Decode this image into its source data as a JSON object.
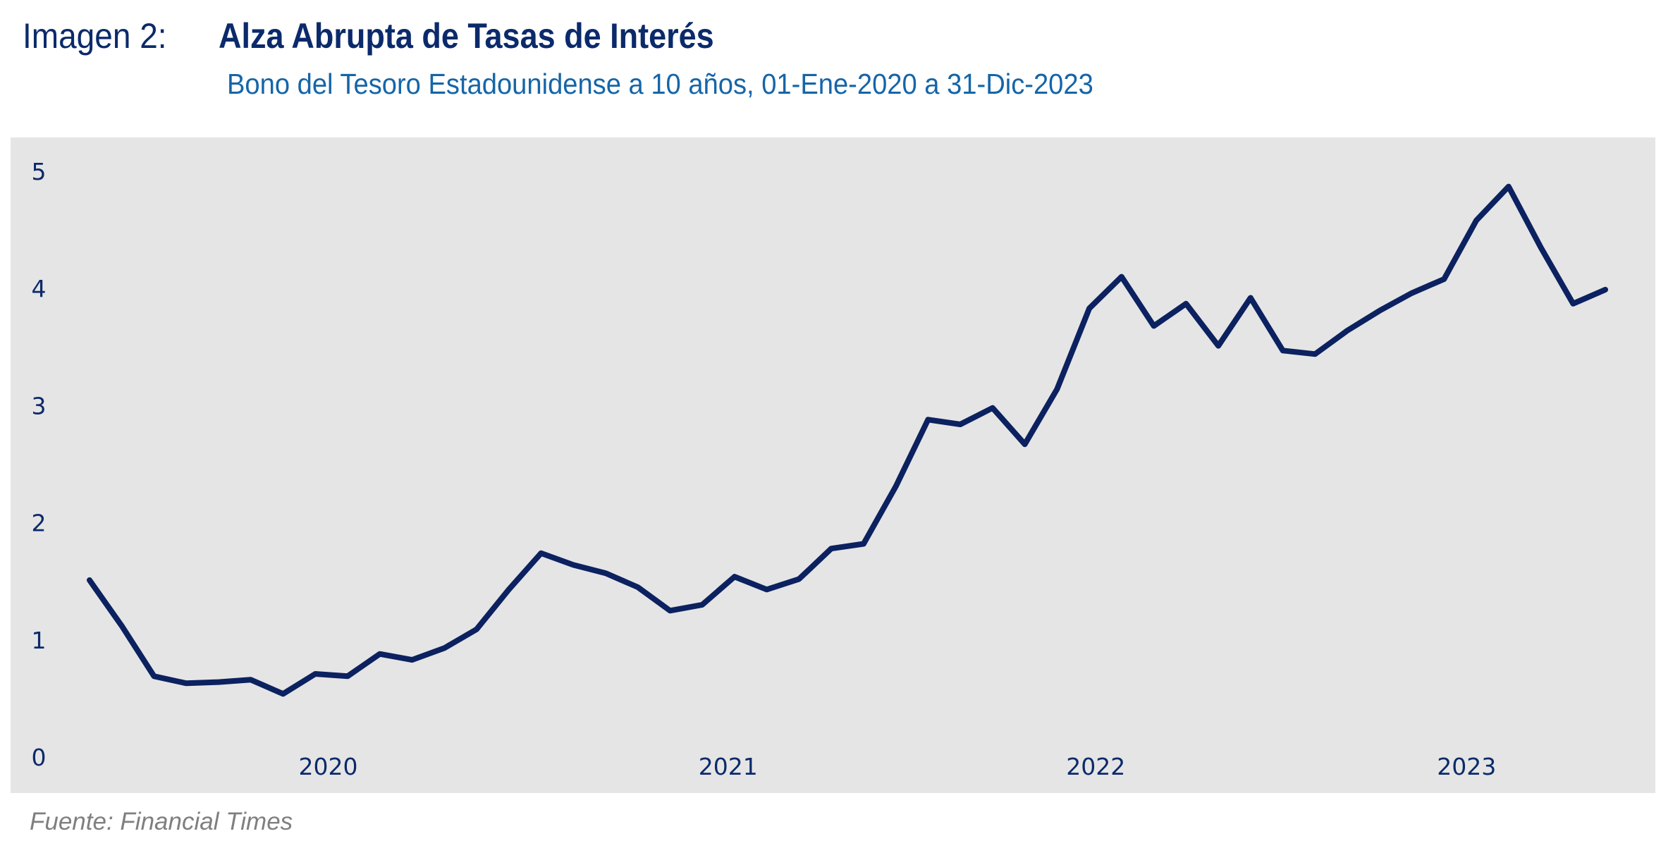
{
  "header": {
    "title_prefix": "Imagen 2:",
    "title": "Alza Abrupta de Tasas de Interés",
    "subtitle": "Bono del Tesoro Estadounidense a 10 años, 01-Ene-2020 a 31-Dic-2023"
  },
  "source": "Fuente: Financial Times",
  "chart_data": {
    "type": "line",
    "title": "Alza Abrupta de Tasas de Interés",
    "xlabel": "",
    "ylabel": "",
    "ylim": [
      0,
      5
    ],
    "yticks": [
      "0",
      "1",
      "2",
      "3",
      "4",
      "5"
    ],
    "xticks": [
      {
        "label": "2020",
        "x": 7.4
      },
      {
        "label": "2021",
        "x": 19.8
      },
      {
        "label": "2022",
        "x": 31.2
      },
      {
        "label": "2023",
        "x": 42.7
      }
    ],
    "grid": false,
    "line_color": "#0b2160",
    "series": [
      {
        "name": "Bono del Tesoro 10 años",
        "values": [
          1.51,
          1.12,
          0.69,
          0.63,
          0.64,
          0.66,
          0.54,
          0.71,
          0.69,
          0.88,
          0.83,
          0.93,
          1.09,
          1.43,
          1.74,
          1.64,
          1.57,
          1.45,
          1.25,
          1.3,
          1.54,
          1.43,
          1.52,
          1.78,
          1.82,
          2.31,
          2.88,
          2.84,
          2.98,
          2.67,
          3.14,
          3.83,
          4.1,
          3.68,
          3.87,
          3.51,
          3.92,
          3.47,
          3.44,
          3.64,
          3.81,
          3.96,
          4.08,
          4.58,
          4.87,
          4.35,
          3.87,
          3.99
        ]
      }
    ]
  }
}
